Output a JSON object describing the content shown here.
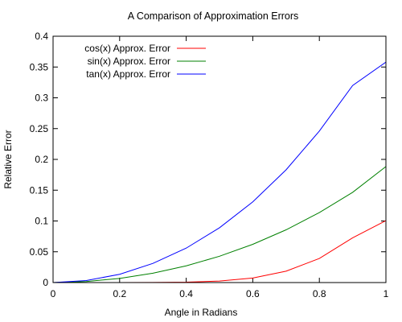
{
  "chart_data": {
    "type": "line",
    "title": "A Comparison of Approximation Errors",
    "xlabel": "Angle in Radians",
    "ylabel": "Relative Error",
    "xlim": [
      0,
      1
    ],
    "ylim": [
      0,
      0.4
    ],
    "xticks": [
      0,
      0.2,
      0.4,
      0.6,
      0.8,
      1
    ],
    "xtick_labels": [
      "0",
      "0.2",
      "0.4",
      "0.6",
      "0.8",
      "1"
    ],
    "yticks": [
      0,
      0.05,
      0.1,
      0.15,
      0.2,
      0.25,
      0.3,
      0.35,
      0.4
    ],
    "ytick_labels": [
      "0",
      "0.05",
      "0.1",
      "0.15",
      "0.2",
      "0.25",
      "0.3",
      "0.35",
      "0.4"
    ],
    "grid": false,
    "legend_position": "top-left",
    "x": [
      0,
      0.1,
      0.2,
      0.3,
      0.4,
      0.5,
      0.6,
      0.7,
      0.8,
      0.9,
      1.0
    ],
    "series": [
      {
        "name": "cos(x) Approx. Error",
        "color": "#ff0000",
        "values": [
          0,
          1.4e-07,
          9e-06,
          0.00011,
          0.00061,
          0.0024,
          0.0074,
          0.0185,
          0.0391,
          0.0726,
          0.1006
        ]
      },
      {
        "name": "sin(x) Approx. Error",
        "color": "#008000",
        "values": [
          0,
          0.00167,
          0.00669,
          0.0152,
          0.0271,
          0.0427,
          0.0621,
          0.0856,
          0.1136,
          0.1465,
          0.1884
        ]
      },
      {
        "name": "tan(x) Approx. Error",
        "color": "#0000ff",
        "values": [
          0,
          0.00333,
          0.0134,
          0.0311,
          0.0559,
          0.089,
          0.131,
          0.183,
          0.246,
          0.32,
          0.358
        ]
      }
    ]
  }
}
